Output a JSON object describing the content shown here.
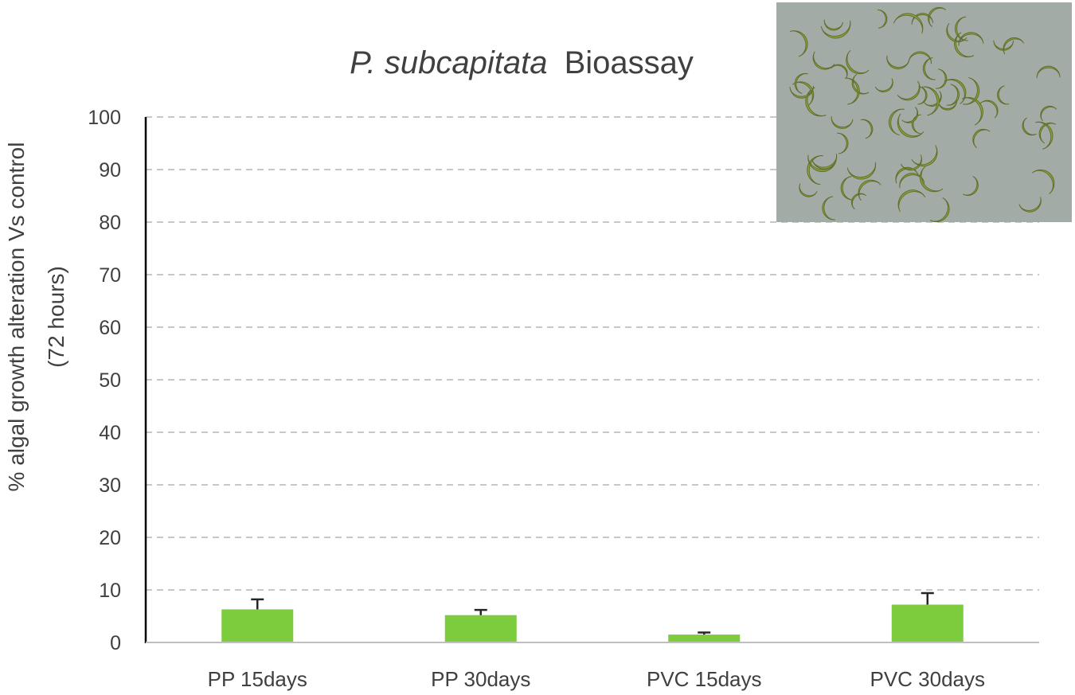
{
  "chart_data": {
    "type": "bar",
    "title_italic": "P. subcapitata",
    "title_rest": "Bioassay",
    "ylabel_line1": "% algal growth alteration Vs control",
    "ylabel_line2": "(72 hours)",
    "xlabel": "",
    "ylim": [
      0,
      100
    ],
    "yticks": [
      0,
      10,
      20,
      30,
      40,
      50,
      60,
      70,
      80,
      90,
      100
    ],
    "categories": [
      "PP 15days",
      "PP 30days",
      "PVC 15days",
      "PVC 30days"
    ],
    "values": [
      6.3,
      5.2,
      1.5,
      7.2
    ],
    "errors": [
      1.9,
      1.0,
      0.4,
      2.2
    ],
    "grid": true,
    "bar_color": "#7ccc3e",
    "inset_image": "photo of crescent-shaped green microalgae cells"
  }
}
